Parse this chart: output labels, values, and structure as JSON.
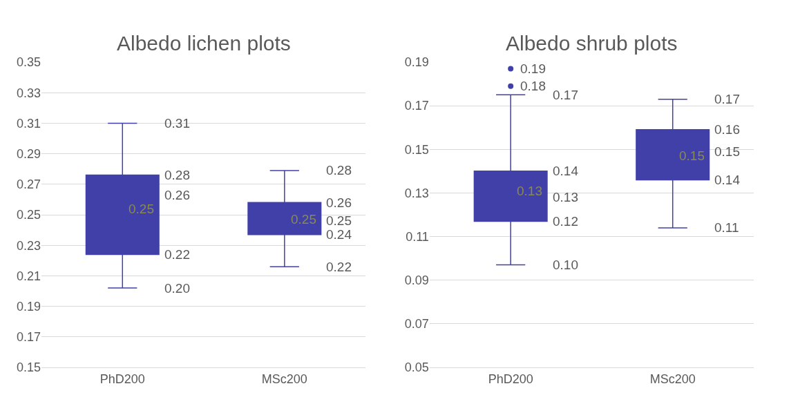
{
  "chart_data": [
    {
      "type": "box",
      "title": "Albedo lichen plots",
      "categories": [
        "PhD200",
        "MSc200"
      ],
      "color": "#4040a8",
      "boxes": [
        {
          "low": 0.202,
          "q1": 0.224,
          "median": 0.263,
          "q3": 0.276,
          "high": 0.31,
          "mean": 0.254
        },
        {
          "low": 0.216,
          "q1": 0.237,
          "median": 0.246,
          "q3": 0.258,
          "high": 0.279,
          "mean": 0.247
        }
      ],
      "annotations": [
        "0.31",
        "0.28",
        "0.26",
        "0.25",
        "0.22",
        "0.20",
        "0.28",
        "0.26",
        "0.25",
        "0.25",
        "0.24",
        "0.22"
      ],
      "ylim": [
        0.15,
        0.35
      ],
      "yticks": [
        0.15,
        0.17,
        0.19,
        0.21,
        0.23,
        0.25,
        0.27,
        0.29,
        0.31,
        0.33,
        0.35
      ],
      "grid": "y"
    },
    {
      "type": "box",
      "title": "Albedo shrub plots",
      "categories": [
        "PhD200",
        "MSc200"
      ],
      "color": "#4040a8",
      "boxes": [
        {
          "low": 0.097,
          "q1": 0.117,
          "median": 0.128,
          "q3": 0.14,
          "high": 0.175,
          "mean": 0.131,
          "outliers": [
            0.187,
            0.179
          ]
        },
        {
          "low": 0.114,
          "q1": 0.136,
          "median": 0.149,
          "q3": 0.159,
          "high": 0.173,
          "mean": 0.147
        }
      ],
      "annotations": [
        "0.19",
        "0.18",
        "0.17",
        "0.14",
        "0.13",
        "0.13",
        "0.12",
        "0.10",
        "0.17",
        "0.16",
        "0.15",
        "0.15",
        "0.14",
        "0.11"
      ],
      "ylim": [
        0.05,
        0.19
      ],
      "yticks": [
        0.05,
        0.07,
        0.09,
        0.11,
        0.13,
        0.15,
        0.17,
        0.19
      ],
      "grid": "y"
    }
  ]
}
